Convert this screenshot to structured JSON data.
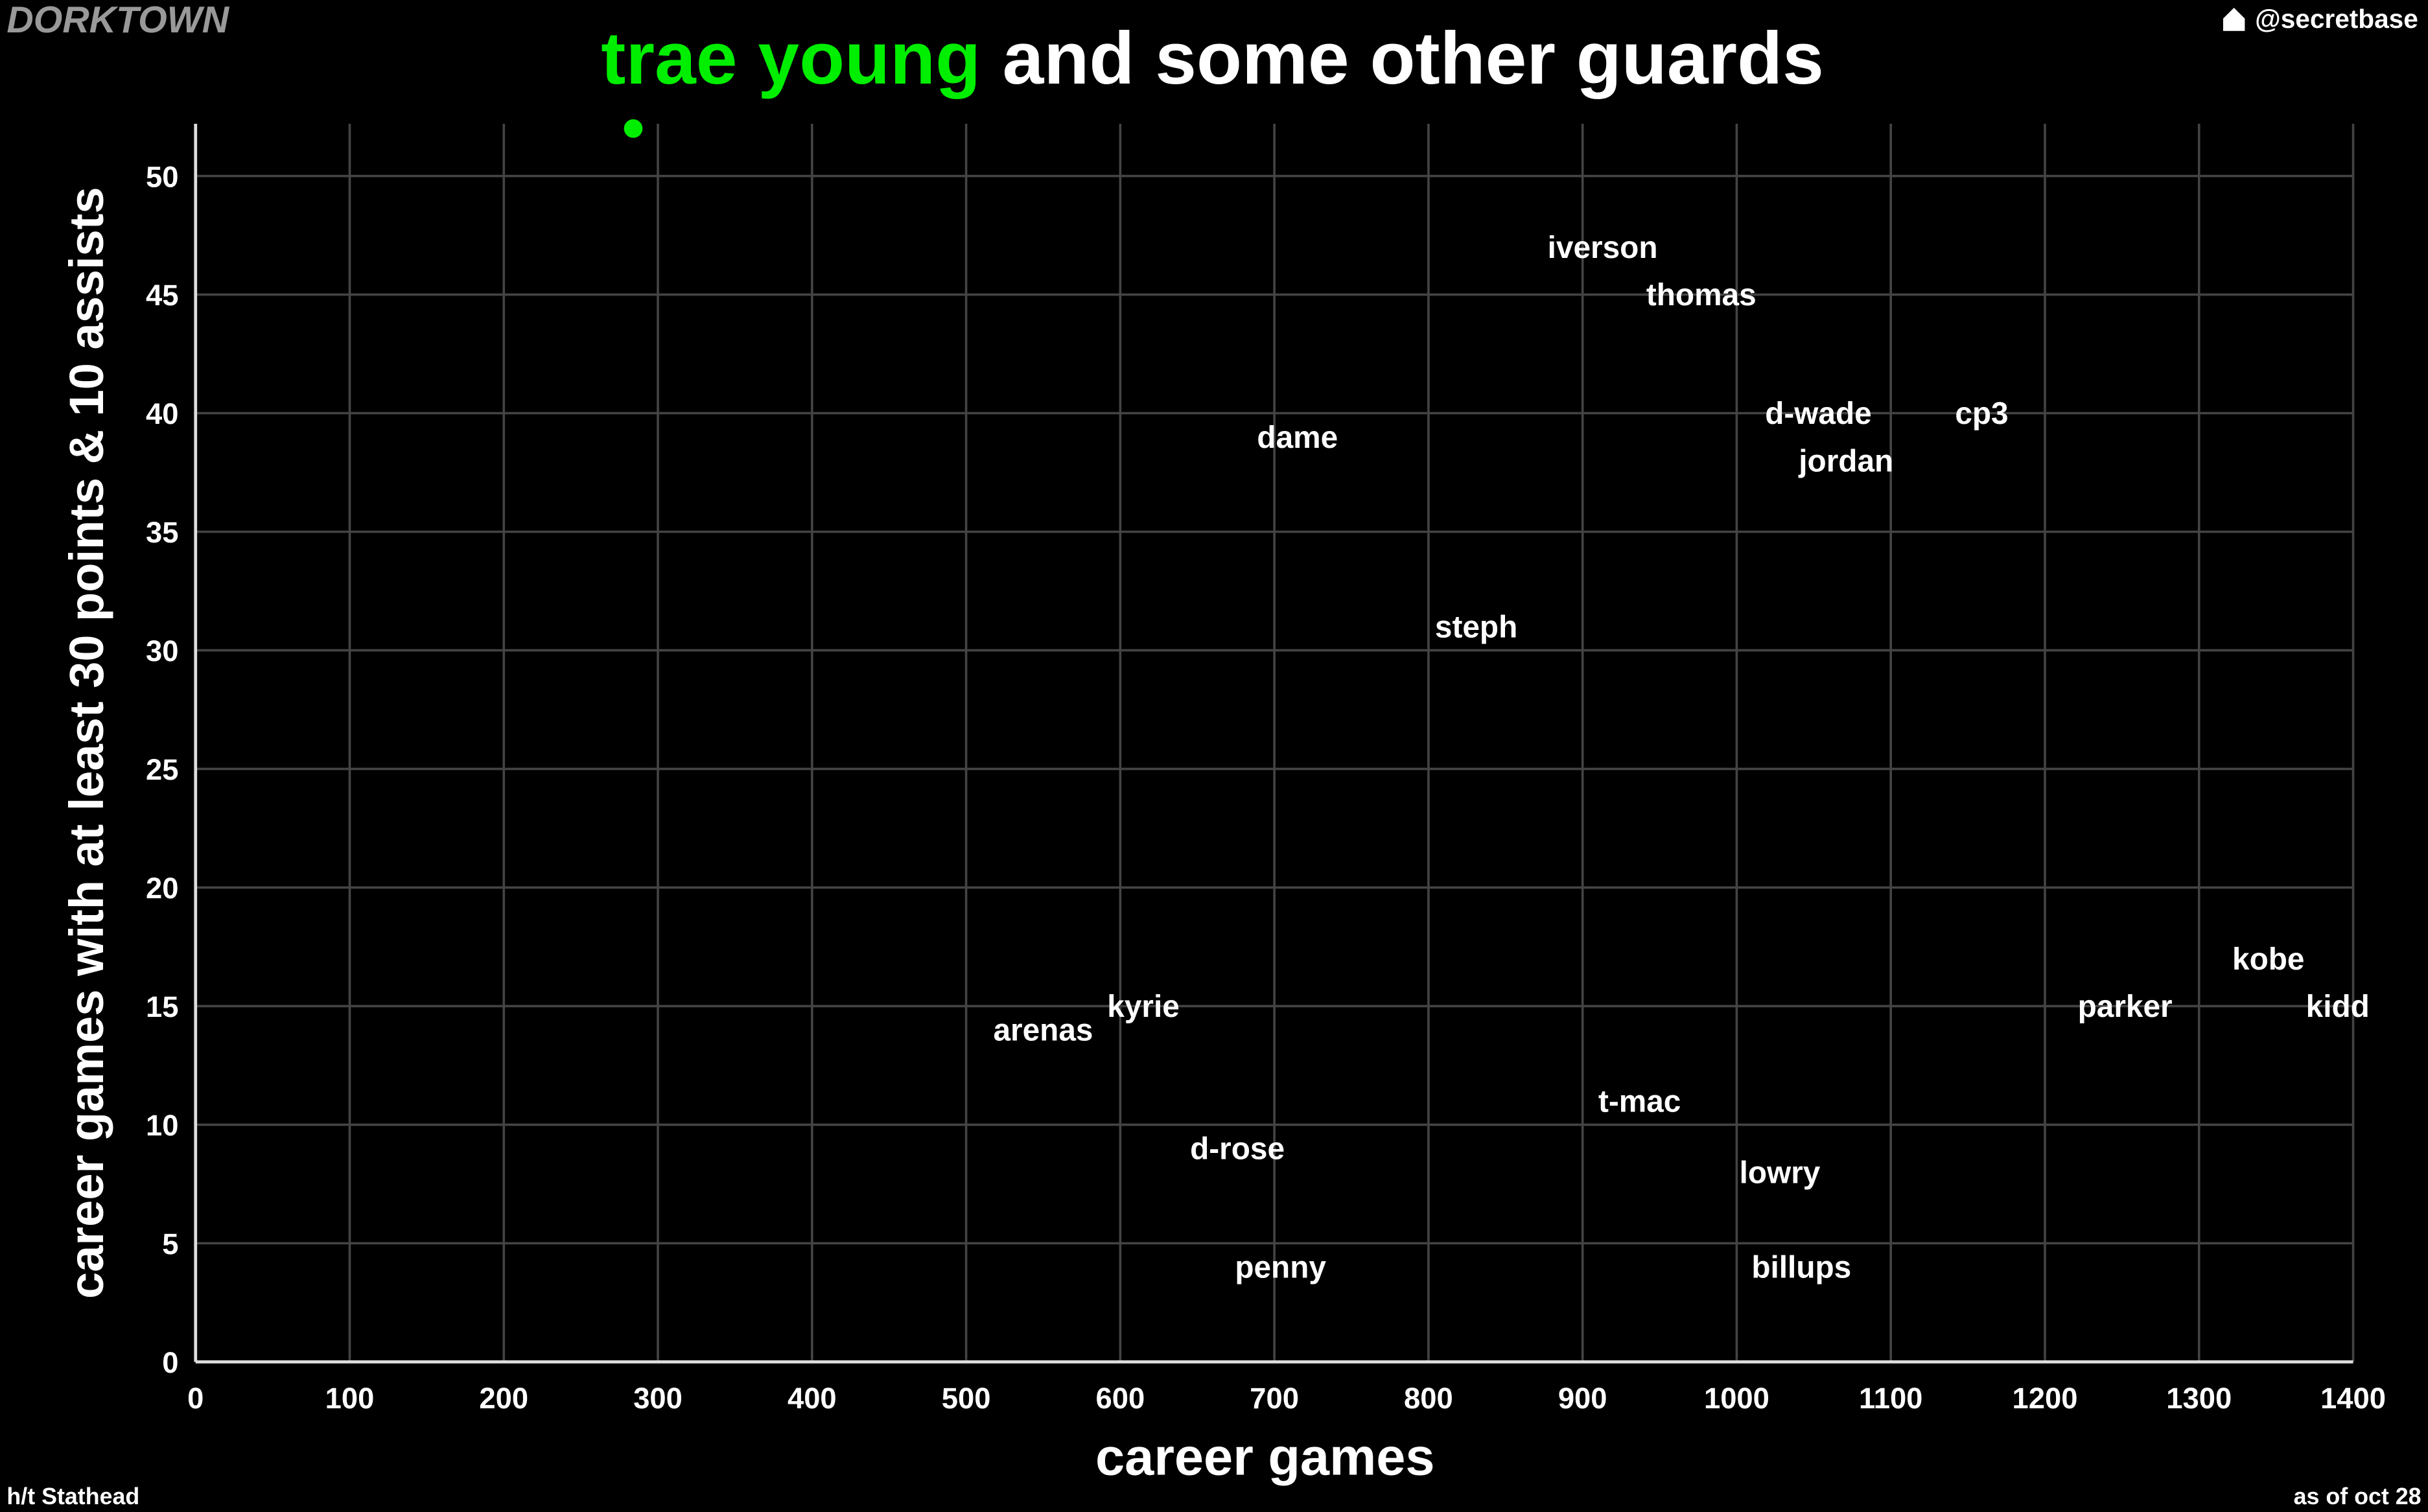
{
  "chart_data": {
    "type": "scatter",
    "title_highlight": "trae young",
    "title": "and some other guards",
    "brand": "DORKTOWN",
    "handle": "@secretbase",
    "credit": "h/t Stathead",
    "date_note": "as of oct 28",
    "x_label": "career games",
    "y_label": "career games with at least 30 points & 10 assists",
    "xlim": [
      0,
      1400
    ],
    "ylim": [
      0,
      52.2
    ],
    "xticks": [
      0,
      100,
      200,
      300,
      400,
      500,
      600,
      700,
      800,
      900,
      1000,
      1100,
      1200,
      1300,
      1400
    ],
    "yticks": [
      0,
      5,
      10,
      15,
      20,
      25,
      30,
      35,
      40,
      45,
      50
    ],
    "grid": true,
    "highlight": {
      "x": 284,
      "y": 52,
      "color": "#00ee00"
    },
    "points": [
      {
        "label": "iverson",
        "x": 913,
        "y": 47
      },
      {
        "label": "thomas",
        "x": 977,
        "y": 45
      },
      {
        "label": "d-wade",
        "x": 1053,
        "y": 40
      },
      {
        "label": "cp3",
        "x": 1159,
        "y": 40
      },
      {
        "label": "dame",
        "x": 715,
        "y": 39
      },
      {
        "label": "jordan",
        "x": 1071,
        "y": 38
      },
      {
        "label": "steph",
        "x": 831,
        "y": 31
      },
      {
        "label": "kobe",
        "x": 1345,
        "y": 17
      },
      {
        "label": "kyrie",
        "x": 615,
        "y": 15
      },
      {
        "label": "parker",
        "x": 1252,
        "y": 15
      },
      {
        "label": "kidd",
        "x": 1390,
        "y": 15
      },
      {
        "label": "arenas",
        "x": 550,
        "y": 14
      },
      {
        "label": "t-mac",
        "x": 937,
        "y": 11
      },
      {
        "label": "d-rose",
        "x": 676,
        "y": 9
      },
      {
        "label": "lowry",
        "x": 1028,
        "y": 8
      },
      {
        "label": "penny",
        "x": 704,
        "y": 4
      },
      {
        "label": "billups",
        "x": 1042,
        "y": 4
      }
    ]
  }
}
